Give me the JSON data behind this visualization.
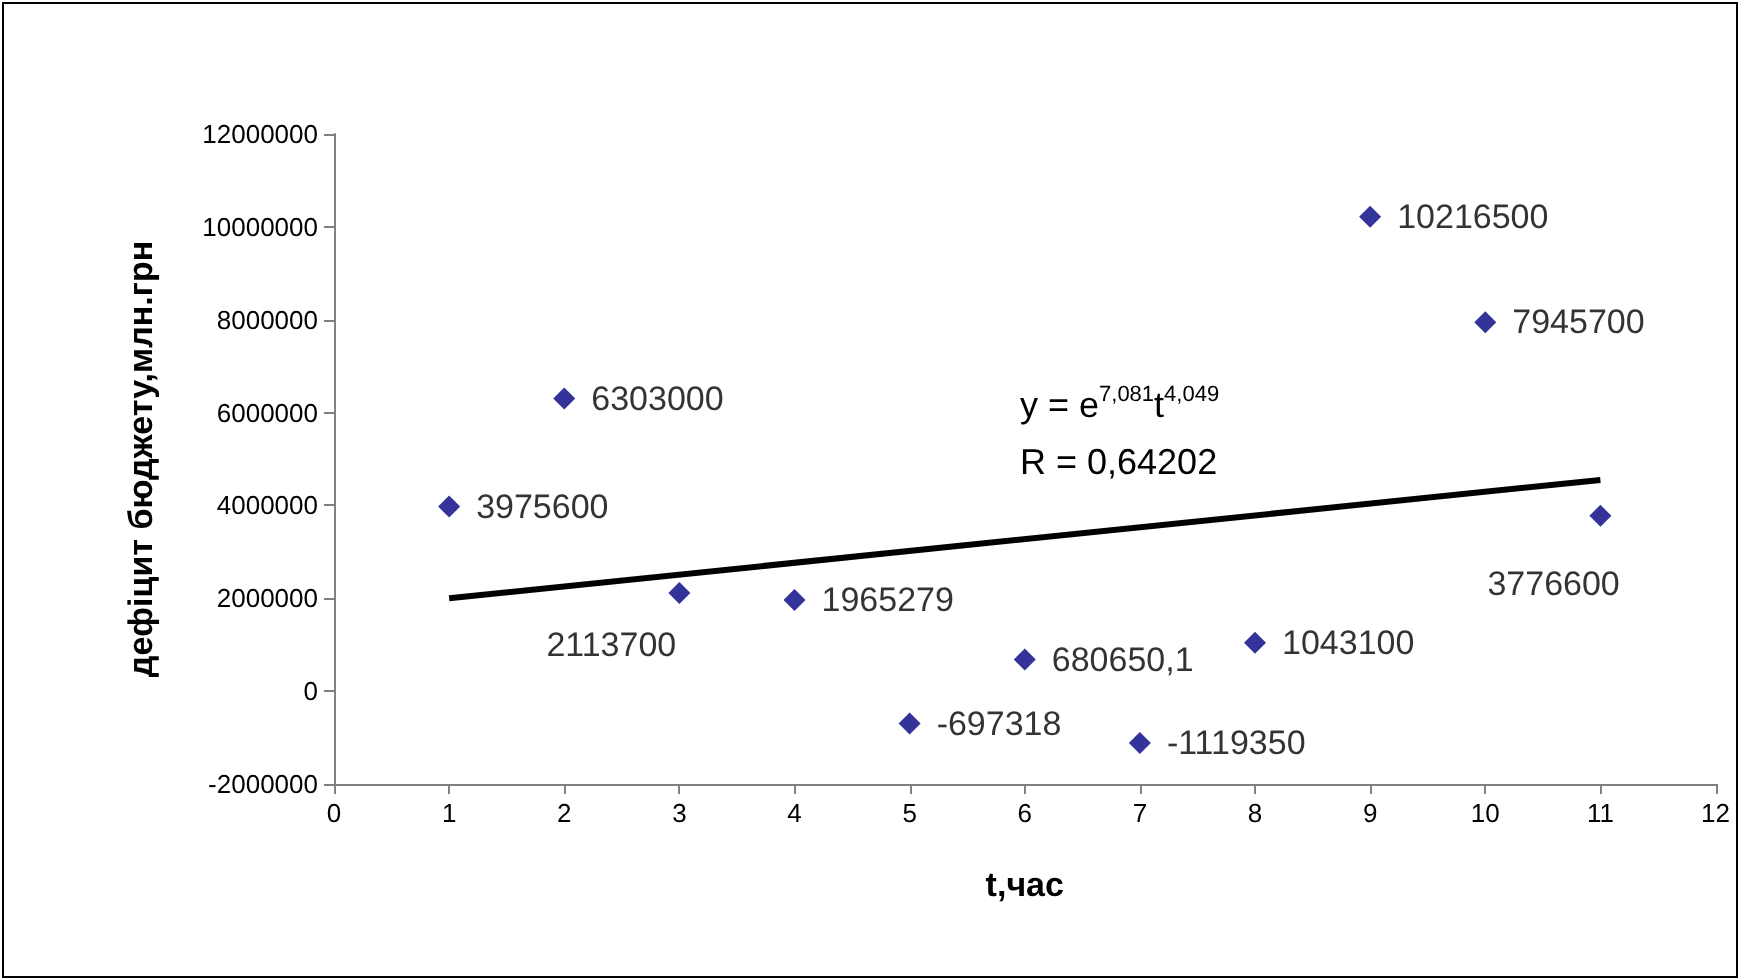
{
  "chart_data": {
    "type": "scatter",
    "xlabel": "t,час",
    "ylabel": "дефіцит бюджету,млн.грн",
    "annotations": [
      "y = e$^{7,081}$t$^{4,049}$",
      "R = 0,64202"
    ],
    "xlim": [
      0,
      12
    ],
    "xticks": [
      0,
      1,
      2,
      3,
      4,
      5,
      6,
      7,
      8,
      9,
      10,
      11,
      12
    ],
    "ylim": [
      -2000000,
      12000000
    ],
    "yticks": [
      -2000000,
      0,
      2000000,
      4000000,
      6000000,
      8000000,
      10000000,
      12000000
    ],
    "grid": false,
    "marker": "diamond",
    "series": [
      {
        "type": "scatter",
        "color": "#000080",
        "x": [
          1,
          2,
          3,
          4,
          5,
          6,
          7,
          8,
          9,
          10,
          11
        ],
        "values": [
          3975600,
          6303000,
          2113700,
          1965279,
          -697318,
          680650.1,
          -1119350,
          1043100,
          10216500,
          7945700,
          3776600
        ],
        "value_labels": [
          "3975600",
          "6303000",
          "2113700",
          "1965279",
          "-697318",
          "680650,1",
          "-1119350",
          "1043100",
          "10216500",
          "7945700",
          "3776600"
        ]
      },
      {
        "type": "line",
        "color": "#000000",
        "marker": "none",
        "x": [
          1,
          11
        ],
        "values": [
          2000000,
          4550000
        ]
      }
    ]
  }
}
